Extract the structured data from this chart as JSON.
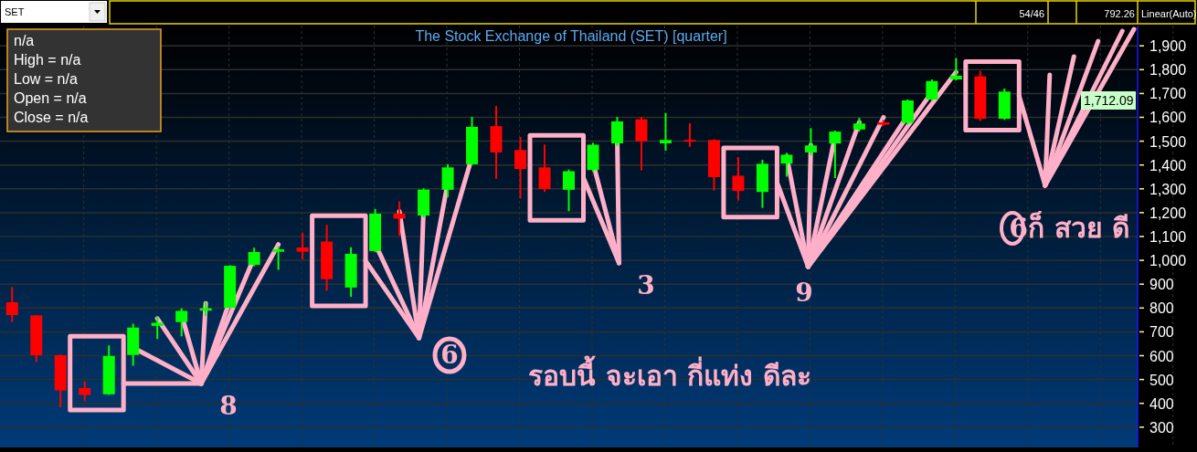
{
  "chart_data": {
    "type": "candlestick",
    "title": "The Stock Exchange of Thailand (SET) [quarter]",
    "categories": [
      null,
      null,
      null,
      null,
      null,
      null,
      null,
      null,
      null,
      null,
      null,
      null,
      null,
      null,
      null,
      null,
      null,
      null,
      null,
      null,
      null,
      null,
      null,
      null,
      null,
      null,
      null,
      null,
      null,
      null,
      null,
      null,
      null,
      null,
      null,
      null,
      null,
      null,
      null,
      null,
      null,
      null,
      null,
      null,
      null,
      null,
      null
    ],
    "ohlc": [
      [
        824,
        888,
        741,
        770
      ],
      [
        769,
        769,
        573,
        602
      ],
      [
        602,
        605,
        384,
        454
      ],
      [
        464,
        492,
        410,
        435
      ],
      [
        438,
        643,
        435,
        599
      ],
      [
        603,
        734,
        558,
        718
      ],
      [
        725,
        762,
        670,
        738
      ],
      [
        741,
        799,
        681,
        788
      ],
      [
        789,
        824,
        766,
        799
      ],
      [
        801,
        980,
        801,
        977
      ],
      [
        981,
        1053,
        975,
        1035
      ],
      [
        1036,
        1059,
        960,
        1046
      ],
      [
        1054,
        1116,
        1004,
        1036
      ],
      [
        1079,
        1149,
        872,
        921
      ],
      [
        886,
        1055,
        847,
        1027
      ],
      [
        1039,
        1216,
        1034,
        1196
      ],
      [
        1196,
        1247,
        1103,
        1175
      ],
      [
        1188,
        1302,
        1180,
        1297
      ],
      [
        1296,
        1403,
        1265,
        1390
      ],
      [
        1403,
        1602,
        1400,
        1560
      ],
      [
        1563,
        1648,
        1342,
        1453
      ],
      [
        1463,
        1518,
        1260,
        1383
      ],
      [
        1390,
        1486,
        1287,
        1299
      ],
      [
        1296,
        1381,
        1206,
        1374
      ],
      [
        1379,
        1493,
        1370,
        1485
      ],
      [
        1491,
        1602,
        1480,
        1583
      ],
      [
        1592,
        1602,
        1377,
        1499
      ],
      [
        1491,
        1618,
        1460,
        1505
      ],
      [
        1505,
        1575,
        1476,
        1498
      ],
      [
        1505,
        1508,
        1293,
        1349
      ],
      [
        1355,
        1433,
        1251,
        1291
      ],
      [
        1287,
        1422,
        1220,
        1405
      ],
      [
        1406,
        1451,
        1351,
        1443
      ],
      [
        1453,
        1555,
        1440,
        1482
      ],
      [
        1490,
        1544,
        1345,
        1540
      ],
      [
        1549,
        1598,
        1540,
        1574
      ],
      [
        1579,
        1589,
        1565,
        1569
      ],
      [
        1577,
        1675,
        1570,
        1671
      ],
      [
        1675,
        1759,
        1670,
        1752
      ],
      [
        1759,
        1849,
        1755,
        1775
      ],
      [
        1772,
        1795,
        1585,
        1594
      ],
      [
        1594,
        1721,
        1589,
        1708
      ],
      null,
      null,
      null,
      null,
      null
    ],
    "ylim": [
      215,
      1985
    ],
    "yticks": [
      300,
      400,
      500,
      600,
      700,
      800,
      900,
      {
        "value": 1000,
        "label": "1,000"
      },
      {
        "value": 1100,
        "label": "1,100"
      },
      {
        "value": 1200,
        "label": "1,200"
      },
      {
        "value": 1300,
        "label": "1,300"
      },
      {
        "value": 1400,
        "label": "1,400"
      },
      {
        "value": 1500,
        "label": "1,500"
      },
      {
        "value": 1600,
        "label": "1,600"
      },
      {
        "value": 1700,
        "label": "1,700"
      },
      {
        "value": 1800,
        "label": "1,800"
      },
      {
        "value": 1900,
        "label": "1,900"
      }
    ],
    "grid": true,
    "tick_labels": "y",
    "annotations": [
      "n/a",
      "High  = n/a",
      "Low  = n/a",
      "Open  = n/a",
      "Close  = n/a",
      "SET",
      "54/46",
      "792.26",
      "Linear(Auto)",
      "1,712.09",
      "8",
      "6",
      "3",
      "9",
      "รอบนี้ จะเอา กี่แท่ง  ดีละ",
      "6ก็ สวย ดี"
    ]
  }
}
